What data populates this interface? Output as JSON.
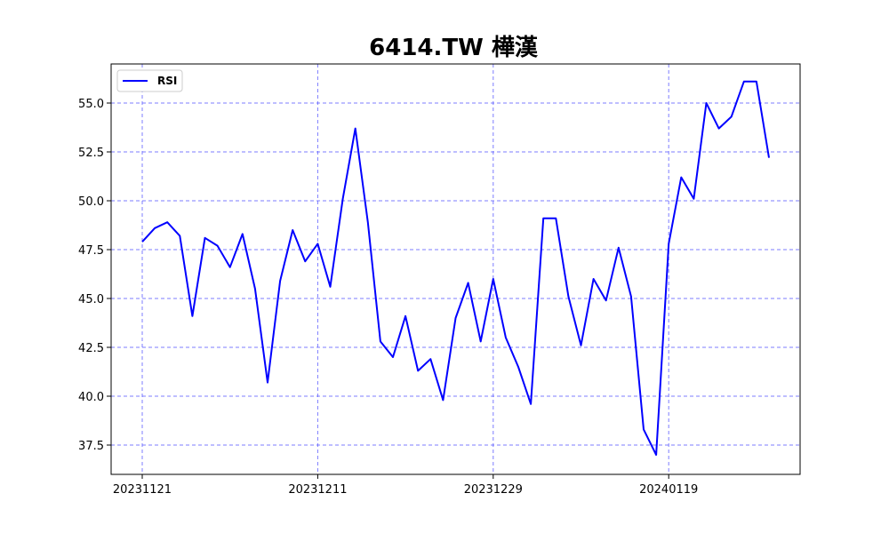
{
  "chart_data": {
    "type": "line",
    "title": "6414.TW 樺漢",
    "xlabel": "",
    "ylabel": "",
    "grid": true,
    "legend_position": "top-left",
    "ylim": [
      36.0,
      57.0
    ],
    "y_ticks": [
      37.5,
      40.0,
      42.5,
      45.0,
      47.5,
      50.0,
      52.5,
      55.0
    ],
    "y_tick_labels": [
      "37.5",
      "40.0",
      "42.5",
      "45.0",
      "47.5",
      "50.0",
      "52.5",
      "55.0"
    ],
    "x_tick_indices": [
      0,
      14,
      28,
      42
    ],
    "x_tick_labels": [
      "20231121",
      "20231211",
      "20231229",
      "20240119"
    ],
    "series": [
      {
        "name": "RSI",
        "color": "#0000ff",
        "values": [
          47.9,
          48.6,
          48.9,
          48.2,
          44.1,
          48.1,
          47.7,
          46.6,
          48.3,
          45.5,
          40.7,
          45.9,
          48.5,
          46.9,
          47.8,
          45.6,
          50.1,
          53.7,
          48.9,
          42.8,
          42.0,
          44.1,
          41.3,
          41.9,
          39.8,
          44.0,
          45.8,
          42.8,
          46.0,
          43.0,
          41.5,
          39.6,
          49.1,
          49.1,
          45.1,
          42.6,
          46.0,
          44.9,
          47.6,
          45.1,
          38.3,
          37.0,
          47.8,
          51.2,
          50.1,
          55.0,
          53.7,
          54.3,
          56.1,
          56.1,
          52.2
        ]
      }
    ]
  }
}
